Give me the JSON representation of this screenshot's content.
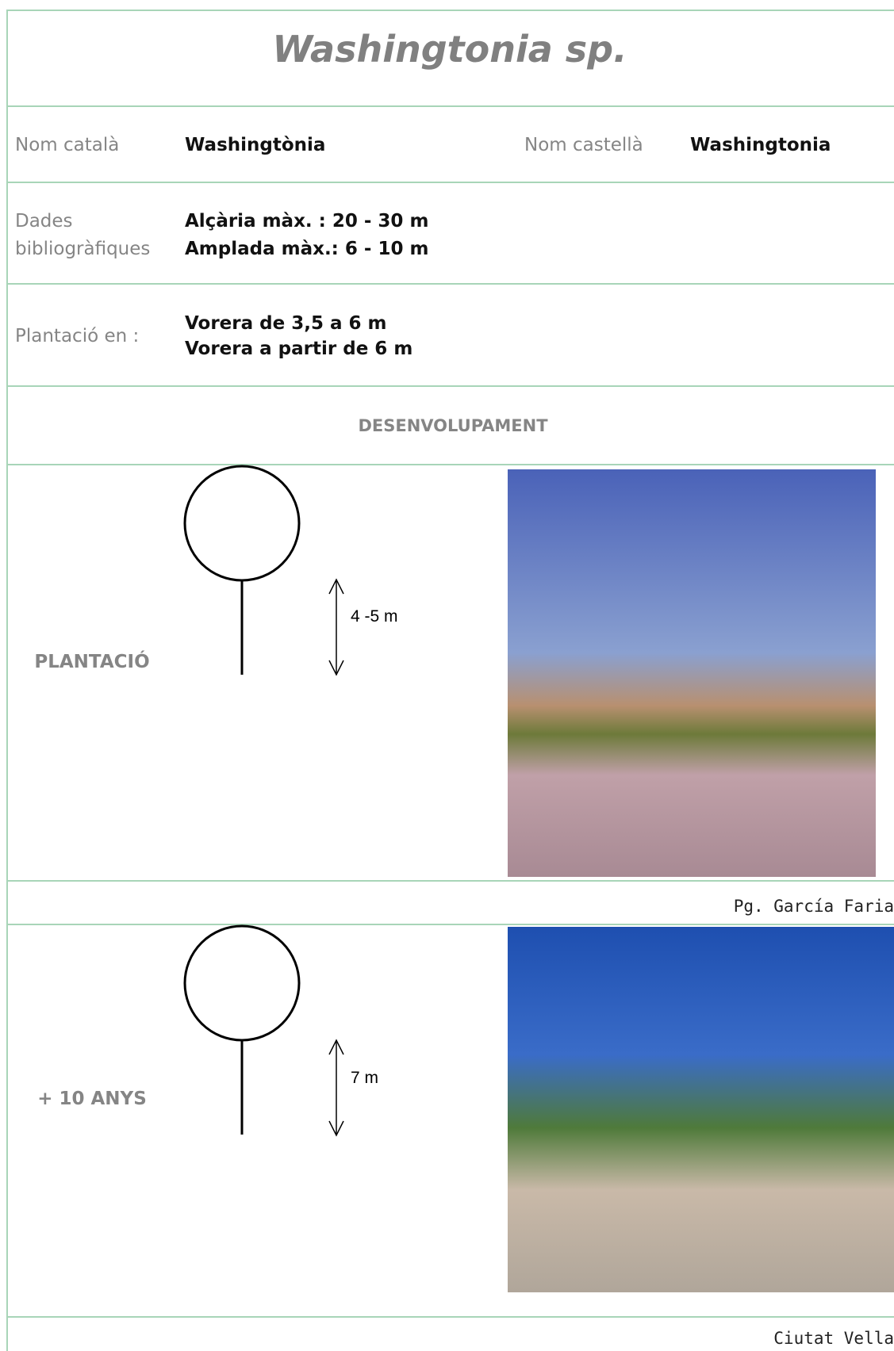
{
  "title": "Washingtonia sp.",
  "names": {
    "catalan_label": "Nom català",
    "catalan": "Washingtònia",
    "spanish_label": "Nom castellà",
    "spanish": "Washingtonia"
  },
  "bibliographic": {
    "label": [
      "Dades",
      "bibliogràfiques"
    ],
    "lines": [
      "Alçària màx. : 20 - 30 m",
      "Amplada màx.: 6 - 10  m"
    ]
  },
  "planting": {
    "label": "Plantació en :",
    "lines": [
      "Vorera de  3,5 a 6 m",
      "Vorera a partir de 6 m"
    ]
  },
  "section": "DESENVOLUPAMENT",
  "stages": [
    {
      "label": "PLANTACIÓ",
      "height": "4 -5 m",
      "caption": "Pg. García  Faria"
    },
    {
      "label": "+ 10 ANYS",
      "height": "7 m",
      "caption": "Ciutat Vella"
    }
  ]
}
